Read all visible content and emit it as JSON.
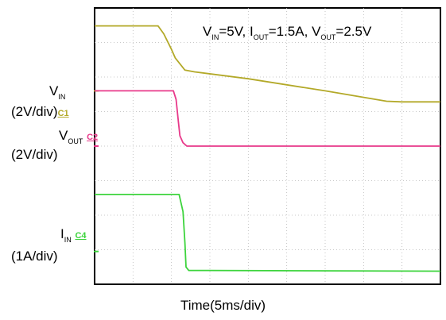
{
  "chart_data": {
    "type": "line",
    "annotation": {
      "vin_sym": "V",
      "vin_sub": "IN",
      "vin_val": "=5V,",
      "iout_sym": "I",
      "iout_sub": "OUT",
      "iout_val": "=1.5A,",
      "vout_sym": "V",
      "vout_sub": "OUT",
      "vout_val": "=2.5V"
    },
    "xlabel": "Time(5ms/div)",
    "grid": true,
    "x_unit_per_div": "5ms",
    "x_range_div": [
      0,
      9
    ],
    "y_range_div": [
      0,
      8
    ],
    "channels": [
      {
        "tag": "C1",
        "name_sym": "V",
        "name_sub": "IN",
        "scale": "(2V/div)",
        "color": "#b3a929",
        "marker_div": 5.6,
        "x": [
          0.0,
          1.65,
          1.8,
          2.0,
          2.1,
          2.35,
          2.6,
          4.0,
          6.0,
          7.6,
          8.0,
          9.0
        ],
        "y": [
          7.48,
          7.48,
          7.25,
          6.8,
          6.55,
          6.2,
          6.15,
          5.95,
          5.6,
          5.3,
          5.28,
          5.28
        ]
      },
      {
        "tag": "C2",
        "name_sym": "V",
        "name_sub": "OUT",
        "scale": "(2V/div)",
        "color": "#e8398a",
        "marker_div": 4.0,
        "x": [
          0.0,
          2.05,
          2.12,
          2.18,
          2.22,
          2.3,
          2.4,
          9.0
        ],
        "y": [
          5.6,
          5.6,
          5.35,
          4.7,
          4.3,
          4.1,
          4.0,
          4.0
        ]
      },
      {
        "tag": "C4",
        "name_sym": "I",
        "name_sub": "IN",
        "scale": "(1A/div)",
        "color": "#3dd43d",
        "marker_div": 0.95,
        "x": [
          0.0,
          2.2,
          2.3,
          2.35,
          2.38,
          2.45,
          3.0,
          9.0
        ],
        "y": [
          2.6,
          2.6,
          2.1,
          1.2,
          0.5,
          0.4,
          0.4,
          0.38
        ]
      }
    ]
  }
}
